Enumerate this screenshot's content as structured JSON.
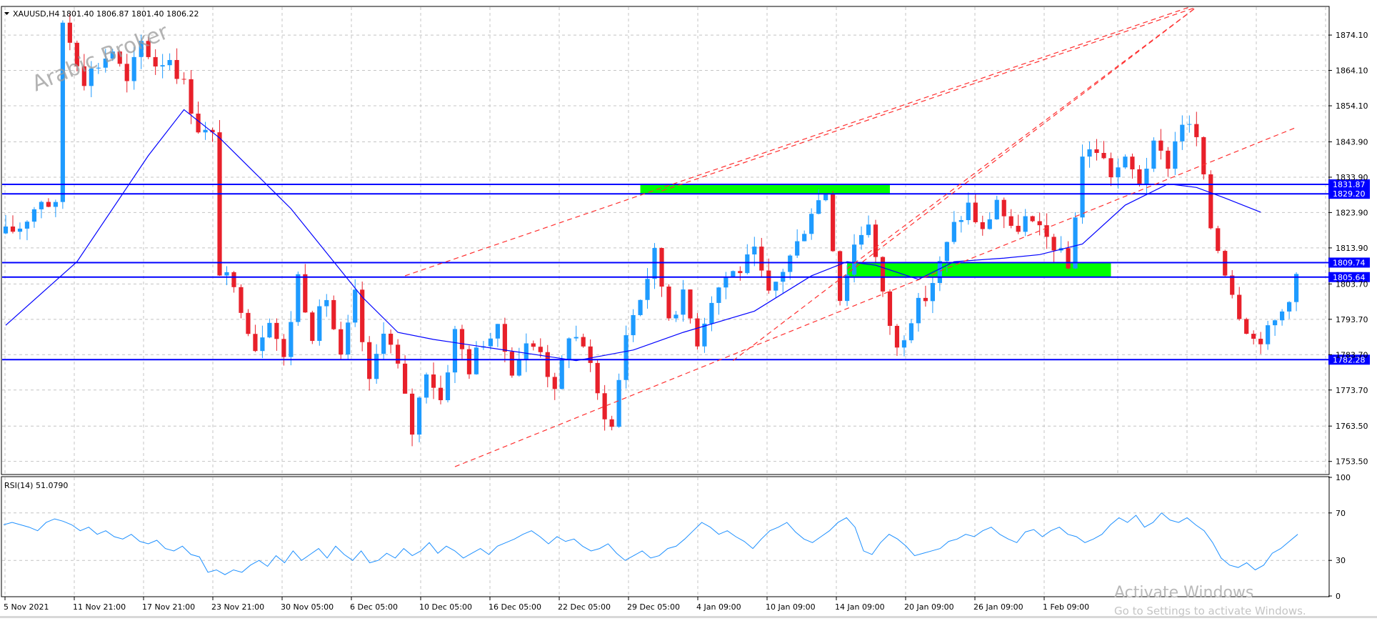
{
  "chart_data": [
    {
      "type": "candlestick",
      "header": {
        "symbol_label": "XAUUSD,H4",
        "ohlc_text": "1801.40 1806.87 1801.40 1806.22"
      },
      "watermark": "Arabic Broker",
      "x_tick_labels": [
        "5 Nov 2021",
        "11 Nov 21:00",
        "17 Nov 21:00",
        "23 Nov 21:00",
        "30 Nov 05:00",
        "6 Dec 05:00",
        "10 Dec 05:00",
        "16 Dec 05:00",
        "22 Dec 05:00",
        "29 Dec 05:00",
        "4 Jan 09:00",
        "10 Jan 09:00",
        "14 Jan 09:00",
        "20 Jan 09:00",
        "26 Jan 09:00",
        "1 Feb 09:00"
      ],
      "y_tick_labels": [
        "1874.10",
        "1864.10",
        "1854.10",
        "1843.90",
        "1833.90",
        "1823.90",
        "1813.90",
        "1803.70",
        "1793.70",
        "1783.70",
        "1773.70",
        "1763.50",
        "1753.50"
      ],
      "ylim": [
        1750,
        1882
      ],
      "price_path": [
        [
          0,
          1818
        ],
        [
          2,
          1820
        ],
        [
          5,
          1828
        ],
        [
          7,
          1825
        ],
        [
          8,
          1878
        ],
        [
          11,
          1862
        ],
        [
          13,
          1866
        ],
        [
          15,
          1870
        ],
        [
          17,
          1860
        ],
        [
          19,
          1872
        ],
        [
          21,
          1866
        ],
        [
          23,
          1868
        ],
        [
          25,
          1860
        ],
        [
          27,
          1848
        ],
        [
          29,
          1845
        ],
        [
          30,
          1808
        ],
        [
          33,
          1798
        ],
        [
          35,
          1786
        ],
        [
          37,
          1795
        ],
        [
          39,
          1782
        ],
        [
          41,
          1806
        ],
        [
          43,
          1790
        ],
        [
          45,
          1800
        ],
        [
          47,
          1782
        ],
        [
          49,
          1800
        ],
        [
          51,
          1775
        ],
        [
          53,
          1792
        ],
        [
          55,
          1780
        ],
        [
          57,
          1762
        ],
        [
          59,
          1780
        ],
        [
          61,
          1771
        ],
        [
          63,
          1790
        ],
        [
          65,
          1780
        ],
        [
          67,
          1788
        ],
        [
          69,
          1790
        ],
        [
          71,
          1780
        ],
        [
          73,
          1786
        ],
        [
          75,
          1786
        ],
        [
          77,
          1772
        ],
        [
          79,
          1790
        ],
        [
          81,
          1787
        ],
        [
          83,
          1772
        ],
        [
          85,
          1763
        ],
        [
          87,
          1790
        ],
        [
          89,
          1800
        ],
        [
          91,
          1812
        ],
        [
          93,
          1795
        ],
        [
          95,
          1800
        ],
        [
          97,
          1788
        ],
        [
          99,
          1800
        ],
        [
          101,
          1806
        ],
        [
          103,
          1808
        ],
        [
          105,
          1812
        ],
        [
          107,
          1800
        ],
        [
          109,
          1808
        ],
        [
          111,
          1815
        ],
        [
          113,
          1825
        ],
        [
          115,
          1830
        ],
        [
          117,
          1800
        ],
        [
          119,
          1815
        ],
        [
          121,
          1822
        ],
        [
          123,
          1800
        ],
        [
          125,
          1785
        ],
        [
          127,
          1795
        ],
        [
          129,
          1800
        ],
        [
          131,
          1809
        ],
        [
          133,
          1820
        ],
        [
          135,
          1826
        ],
        [
          137,
          1818
        ],
        [
          139,
          1828
        ],
        [
          141,
          1818
        ],
        [
          143,
          1822
        ],
        [
          145,
          1818
        ],
        [
          147,
          1815
        ],
        [
          149,
          1808
        ],
        [
          151,
          1840
        ],
        [
          153,
          1842
        ],
        [
          155,
          1835
        ],
        [
          157,
          1838
        ],
        [
          159,
          1833
        ],
        [
          161,
          1842
        ],
        [
          163,
          1838
        ],
        [
          165,
          1850
        ],
        [
          167,
          1845
        ],
        [
          169,
          1820
        ],
        [
          171,
          1808
        ],
        [
          173,
          1796
        ],
        [
          175,
          1788
        ],
        [
          177,
          1790
        ],
        [
          179,
          1796
        ],
        [
          181,
          1806
        ]
      ],
      "moving_average_path": [
        [
          0,
          1792
        ],
        [
          10,
          1810
        ],
        [
          20,
          1840
        ],
        [
          25,
          1853
        ],
        [
          30,
          1845
        ],
        [
          40,
          1825
        ],
        [
          50,
          1800
        ],
        [
          55,
          1790
        ],
        [
          60,
          1788
        ],
        [
          70,
          1785
        ],
        [
          80,
          1782
        ],
        [
          88,
          1785
        ],
        [
          95,
          1790
        ],
        [
          105,
          1796
        ],
        [
          113,
          1806
        ],
        [
          118,
          1810
        ],
        [
          122,
          1809
        ],
        [
          128,
          1805
        ],
        [
          133,
          1810
        ],
        [
          140,
          1811
        ],
        [
          145,
          1812
        ],
        [
          151,
          1815
        ],
        [
          157,
          1826
        ],
        [
          163,
          1832
        ],
        [
          167,
          1831
        ],
        [
          171,
          1828
        ],
        [
          176,
          1824
        ]
      ],
      "horizontal_levels": [
        {
          "value": 1831.87,
          "label": "1831.87"
        },
        {
          "value": 1829.2,
          "label": "1829.20"
        },
        {
          "value": 1809.74,
          "label": "1809.74"
        },
        {
          "value": 1805.64,
          "label": "1805.64"
        },
        {
          "value": 1782.28,
          "label": "1782.28"
        }
      ],
      "zones": [
        {
          "from_bar": 89,
          "to_bar": 124,
          "low": 1829.2,
          "high": 1831.87,
          "color": "#00ff00"
        },
        {
          "from_bar": 118,
          "to_bar": 155,
          "low": 1805.64,
          "high": 1809.74,
          "color": "#00ff00"
        }
      ],
      "trendlines": [
        {
          "from": [
            56,
            1806
          ],
          "to": [
            166,
            1882
          ]
        },
        {
          "from": [
            92,
            1830
          ],
          "to": [
            167,
            1882
          ]
        },
        {
          "from": [
            63,
            1752
          ],
          "to": [
            181,
            1848
          ]
        },
        {
          "from": [
            102,
            1782
          ],
          "to": [
            167,
            1882
          ]
        },
        {
          "from": [
            118,
            1808
          ],
          "to": [
            167,
            1882
          ]
        }
      ],
      "colors": {
        "bull": "#1e9bff",
        "bear": "#e8202a",
        "ma": "#0000ff",
        "level": "#0000ff",
        "trend": "#ff3030",
        "grid": "#c4c4c4"
      }
    },
    {
      "type": "line",
      "title": "RSI(14) 51.0790",
      "y_tick_labels": [
        "100",
        "70",
        "30",
        "0"
      ],
      "ylim": [
        0,
        100
      ],
      "values": [
        60,
        62,
        60,
        58,
        55,
        62,
        65,
        63,
        60,
        55,
        58,
        52,
        55,
        50,
        48,
        52,
        46,
        44,
        47,
        40,
        38,
        42,
        35,
        33,
        20,
        22,
        18,
        22,
        20,
        26,
        30,
        25,
        34,
        28,
        38,
        30,
        35,
        40,
        32,
        42,
        35,
        30,
        38,
        28,
        30,
        36,
        32,
        40,
        34,
        38,
        45,
        36,
        42,
        38,
        32,
        36,
        40,
        35,
        42,
        45,
        48,
        52,
        55,
        50,
        44,
        50,
        46,
        48,
        42,
        38,
        40,
        44,
        36,
        30,
        34,
        38,
        32,
        34,
        40,
        42,
        48,
        55,
        62,
        58,
        52,
        55,
        50,
        46,
        40,
        48,
        55,
        58,
        62,
        54,
        48,
        45,
        50,
        55,
        62,
        66,
        58,
        38,
        35,
        45,
        52,
        48,
        42,
        34,
        36,
        38,
        40,
        46,
        48,
        52,
        50,
        55,
        58,
        52,
        48,
        45,
        54,
        56,
        50,
        55,
        58,
        52,
        50,
        45,
        48,
        52,
        60,
        66,
        62,
        68,
        58,
        62,
        70,
        64,
        62,
        66,
        60,
        55,
        45,
        32,
        26,
        24,
        28,
        22,
        26,
        36,
        40,
        46,
        52
      ]
    }
  ],
  "rsi_labels": {
    "title": "RSI(14) 51.0790",
    "ticks": [
      "100",
      "70",
      "30",
      "0"
    ]
  },
  "overlay": {
    "activate_title": "Activate Windows",
    "activate_sub": "Go to Settings to activate Windows."
  }
}
